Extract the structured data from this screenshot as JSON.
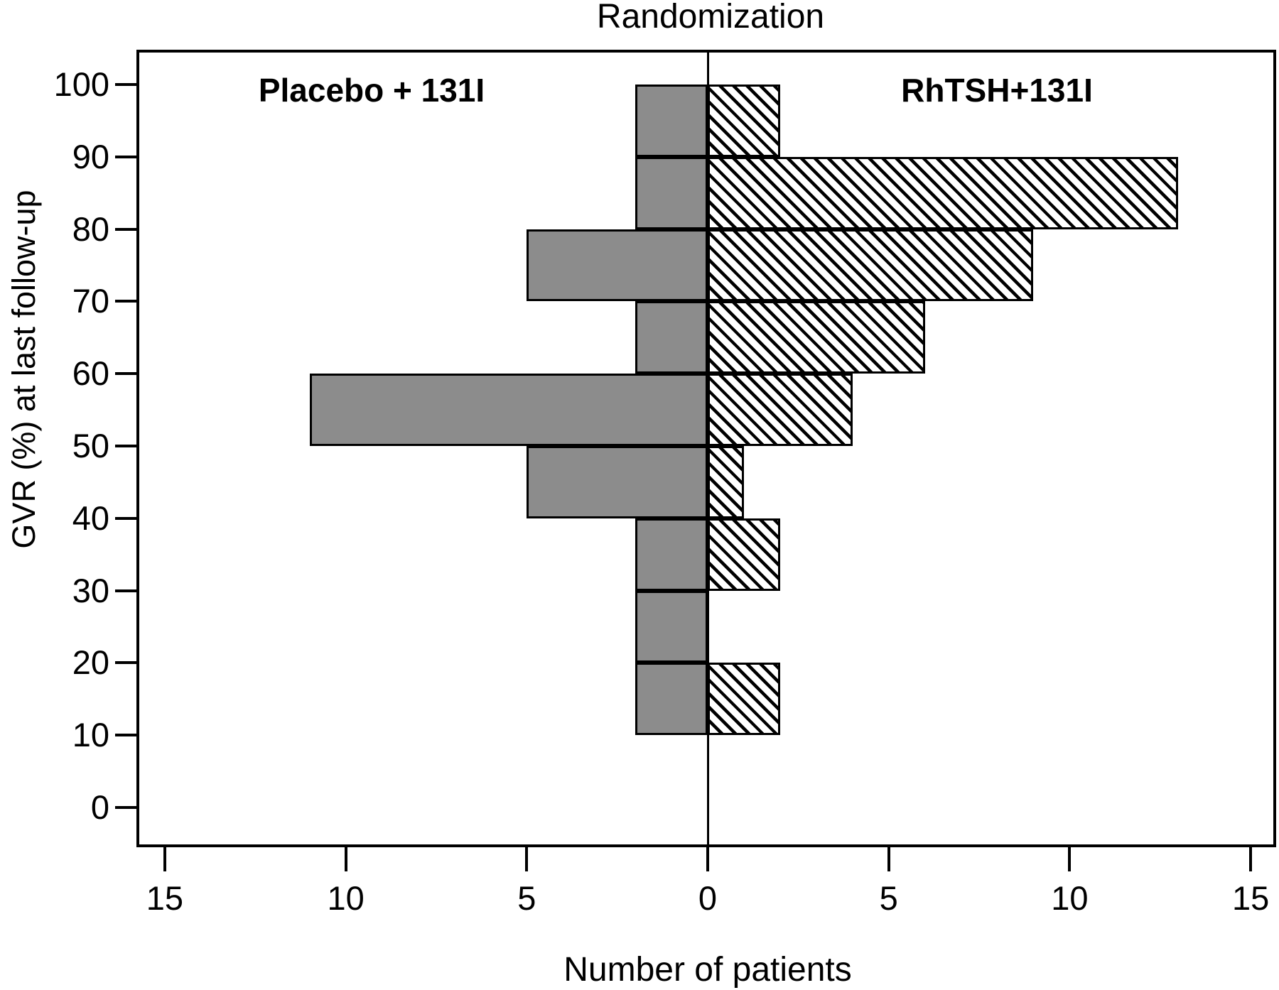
{
  "chart_data": {
    "type": "bar",
    "subtype": "diverging-horizontal-histogram",
    "title": "Randomization",
    "xlabel": "Number of patients",
    "ylabel": "GVR (%) at last follow-up",
    "grid": "off",
    "bins": [
      {
        "low": 10,
        "high": 20
      },
      {
        "low": 20,
        "high": 30
      },
      {
        "low": 30,
        "high": 40
      },
      {
        "low": 40,
        "high": 50
      },
      {
        "low": 50,
        "high": 60
      },
      {
        "low": 60,
        "high": 70
      },
      {
        "low": 70,
        "high": 80
      },
      {
        "low": 80,
        "high": 90
      },
      {
        "low": 90,
        "high": 100
      }
    ],
    "series": [
      {
        "name": "Placebo + 131I",
        "side": "left",
        "style": "solid",
        "color": "#8c8c8c",
        "values": [
          2,
          2,
          2,
          5,
          11,
          2,
          5,
          2,
          2
        ]
      },
      {
        "name": "RhTSH+131I",
        "side": "right",
        "style": "hatch",
        "color": "#ffffff",
        "hatch_color": "#000000",
        "values": [
          2,
          0,
          2,
          1,
          4,
          6,
          9,
          13,
          2
        ]
      }
    ],
    "x_axis": {
      "max_per_side": 15,
      "ticks": [
        {
          "label": "15",
          "units": -15
        },
        {
          "label": "10",
          "units": -10
        },
        {
          "label": "5",
          "units": -5
        },
        {
          "label": "0",
          "units": 0
        },
        {
          "label": "5",
          "units": 5
        },
        {
          "label": "10",
          "units": 10
        },
        {
          "label": "15",
          "units": 15
        }
      ]
    },
    "y_axis": {
      "range": [
        0,
        100
      ],
      "ticks": [
        0,
        10,
        20,
        30,
        40,
        50,
        60,
        70,
        80,
        90,
        100
      ]
    }
  }
}
